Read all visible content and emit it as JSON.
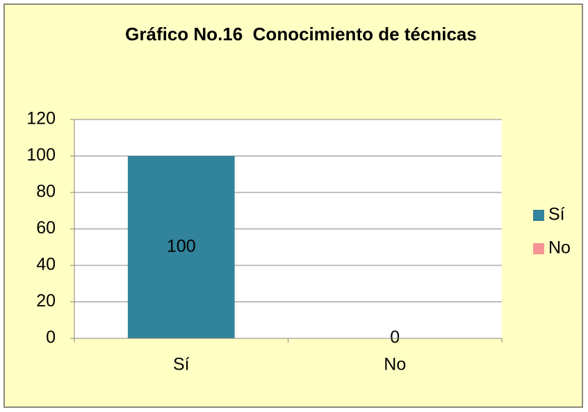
{
  "chart_data": {
    "type": "bar",
    "title": "Gráfico No.16  Conocimiento de técnicas",
    "categories": [
      "Sí",
      "No"
    ],
    "values": [
      100,
      0
    ],
    "colors": [
      "#31849b",
      "#f79494"
    ],
    "ylim": [
      0,
      120
    ],
    "yticks": [
      0,
      20,
      40,
      60,
      80,
      100,
      120
    ],
    "grid": true,
    "legend": "right"
  }
}
